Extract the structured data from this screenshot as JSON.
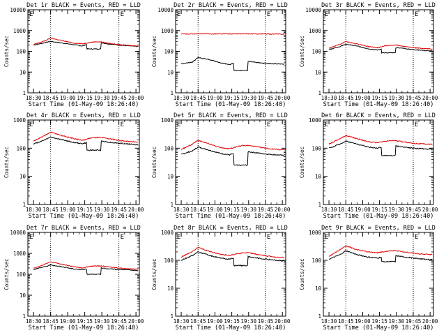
{
  "colors": {
    "events": "#000000",
    "lld": "#e00000",
    "background": "#ffffff"
  },
  "chart_data": [
    {
      "type": "line",
      "title": "Det 1r BLACK = Events, RED = LLD",
      "xlabel": "Start Time (01-May-09 18:26:40)",
      "ylabel": "Counts/sec",
      "ylim": [
        1,
        10000
      ],
      "yscale": "log",
      "yticks": [
        "1",
        "10",
        "100",
        "1000",
        "10000"
      ],
      "x_ticks": [
        "18:30",
        "18:45",
        "19:00",
        "19:15",
        "19:30",
        "19:45",
        "20:00"
      ],
      "x_minutes": [
        0,
        15,
        30,
        45,
        60,
        75,
        90
      ],
      "vlines_minutes": [
        15,
        75
      ],
      "flag": "E",
      "x": [
        0,
        10,
        15,
        25,
        35,
        43,
        45,
        50,
        55,
        60,
        65,
        75,
        85,
        92
      ],
      "series": [
        {
          "values": [
            200,
            260,
            300,
            250,
            210,
            180,
            200,
            250,
            270,
            260,
            230,
            200,
            180,
            170
          ]
        },
        {
          "values": [
            210,
            320,
            430,
            330,
            250,
            230,
            240,
            270,
            290,
            280,
            250,
            210,
            190,
            180
          ]
        }
      ],
      "dip": {
        "series": 0,
        "start": 47,
        "end": 59,
        "value": 130
      }
    },
    {
      "type": "line",
      "title": "Det 2r BLACK = Events, RED = LLD",
      "xlabel": "Start Time (01-May-09 18:26:40)",
      "ylabel": "Counts/sec",
      "ylim": [
        1,
        10000
      ],
      "yscale": "log",
      "yticks": [
        "1",
        "10",
        "100",
        "1000",
        "10000"
      ],
      "x_ticks": [
        "18:30",
        "18:45",
        "19:00",
        "19:15",
        "19:30",
        "19:45",
        "20:00"
      ],
      "x_minutes": [
        0,
        15,
        30,
        45,
        60,
        75,
        90
      ],
      "vlines_minutes": [
        15,
        75
      ],
      "flag": "E",
      "x": [
        0,
        10,
        15,
        25,
        35,
        43,
        45,
        50,
        55,
        60,
        65,
        75,
        85,
        92
      ],
      "series": [
        {
          "values": [
            25,
            30,
            50,
            40,
            28,
            23,
            25,
            28,
            32,
            33,
            30,
            26,
            25,
            24
          ]
        },
        {
          "values": [
            680,
            690,
            700,
            690,
            680,
            690,
            685,
            690,
            690,
            690,
            685,
            680,
            675,
            670
          ]
        }
      ],
      "dip": {
        "series": 0,
        "start": 47,
        "end": 59,
        "value": 12
      }
    },
    {
      "type": "line",
      "title": "Det 3r BLACK = Events, RED = LLD",
      "xlabel": "Start Time (01-May-09 18:26:40)",
      "ylabel": "Counts/sec",
      "ylim": [
        1,
        10000
      ],
      "yscale": "log",
      "yticks": [
        "1",
        "10",
        "100",
        "1000",
        "10000"
      ],
      "x_ticks": [
        "18:30",
        "18:45",
        "19:00",
        "19:15",
        "19:30",
        "19:45",
        "20:00"
      ],
      "x_minutes": [
        0,
        15,
        30,
        45,
        60,
        75,
        90
      ],
      "vlines_minutes": [
        15,
        75
      ],
      "flag": "E",
      "x": [
        0,
        10,
        15,
        25,
        35,
        43,
        45,
        50,
        55,
        60,
        65,
        75,
        85,
        92
      ],
      "series": [
        {
          "values": [
            120,
            170,
            220,
            180,
            130,
            115,
            120,
            140,
            150,
            150,
            140,
            120,
            110,
            105
          ]
        },
        {
          "values": [
            140,
            220,
            290,
            230,
            170,
            150,
            155,
            185,
            195,
            200,
            180,
            150,
            135,
            130
          ]
        }
      ],
      "dip": {
        "series": 0,
        "start": 47,
        "end": 59,
        "value": 85
      }
    },
    {
      "type": "line",
      "title": "Det 4r BLACK = Events, RED = LLD",
      "xlabel": "Start Time (01-May-09 18:26:40)",
      "ylabel": "Counts/sec",
      "ylim": [
        1,
        1000
      ],
      "yscale": "log",
      "yticks": [
        "1",
        "10",
        "100",
        "1000"
      ],
      "x_ticks": [
        "18:30",
        "18:45",
        "19:00",
        "19:15",
        "19:30",
        "19:45",
        "20:00"
      ],
      "x_minutes": [
        0,
        15,
        30,
        45,
        60,
        75,
        90
      ],
      "vlines_minutes": [
        15,
        75
      ],
      "flag": "E",
      "x": [
        0,
        10,
        15,
        25,
        35,
        43,
        45,
        50,
        55,
        60,
        65,
        75,
        85,
        92
      ],
      "series": [
        {
          "values": [
            140,
            200,
            250,
            200,
            160,
            145,
            150,
            170,
            180,
            180,
            165,
            150,
            140,
            130
          ]
        },
        {
          "values": [
            180,
            280,
            370,
            280,
            220,
            190,
            200,
            230,
            240,
            240,
            220,
            190,
            170,
            165
          ]
        }
      ],
      "dip": {
        "series": 0,
        "start": 47,
        "end": 59,
        "value": 85
      }
    },
    {
      "type": "line",
      "title": "Det 5r BLACK = Events, RED = LLD",
      "xlabel": "Start Time (01-May-09 18:26:40)",
      "ylabel": "Counts/sec",
      "ylim": [
        1,
        1000
      ],
      "yscale": "log",
      "yticks": [
        "1",
        "10",
        "100",
        "1000"
      ],
      "x_ticks": [
        "18:30",
        "18:45",
        "19:00",
        "19:15",
        "19:30",
        "19:45",
        "20:00"
      ],
      "x_minutes": [
        0,
        15,
        30,
        45,
        60,
        75,
        90
      ],
      "vlines_minutes": [
        15,
        75
      ],
      "flag": "E",
      "x": [
        0,
        10,
        15,
        25,
        35,
        43,
        45,
        50,
        55,
        60,
        65,
        75,
        85,
        92
      ],
      "series": [
        {
          "values": [
            60,
            80,
            110,
            85,
            65,
            58,
            62,
            70,
            75,
            75,
            70,
            62,
            58,
            55
          ]
        },
        {
          "values": [
            90,
            140,
            190,
            140,
            105,
            95,
            100,
            115,
            125,
            125,
            115,
            100,
            90,
            88
          ]
        }
      ],
      "dip": {
        "series": 0,
        "start": 47,
        "end": 59,
        "value": 25
      }
    },
    {
      "type": "line",
      "title": "Det 6r BLACK = Events, RED = LLD",
      "xlabel": "Start Time (01-May-09 18:26:40)",
      "ylabel": "Counts/sec",
      "ylim": [
        1,
        1000
      ],
      "yscale": "log",
      "yticks": [
        "1",
        "10",
        "100",
        "1000"
      ],
      "x_ticks": [
        "18:30",
        "18:45",
        "19:00",
        "19:15",
        "19:30",
        "19:45",
        "20:00"
      ],
      "x_minutes": [
        0,
        15,
        30,
        45,
        60,
        75,
        90
      ],
      "vlines_minutes": [
        15,
        75
      ],
      "flag": "E",
      "x": [
        0,
        10,
        15,
        25,
        35,
        43,
        45,
        50,
        55,
        60,
        65,
        75,
        85,
        92
      ],
      "series": [
        {
          "values": [
            100,
            140,
            180,
            140,
            110,
            100,
            105,
            115,
            120,
            120,
            112,
            100,
            95,
            92
          ]
        },
        {
          "values": [
            140,
            220,
            280,
            220,
            170,
            155,
            160,
            175,
            185,
            185,
            170,
            150,
            140,
            138
          ]
        }
      ],
      "dip": {
        "series": 0,
        "start": 47,
        "end": 59,
        "value": 55
      }
    },
    {
      "type": "line",
      "title": "Det 7r BLACK = Events, RED = LLD",
      "xlabel": "Start Time (01-May-09 18:26:40)",
      "ylabel": "Counts/sec",
      "ylim": [
        1,
        10000
      ],
      "yscale": "log",
      "yticks": [
        "1",
        "10",
        "100",
        "1000",
        "10000"
      ],
      "x_ticks": [
        "18:30",
        "18:45",
        "19:00",
        "19:15",
        "19:30",
        "19:45",
        "20:00"
      ],
      "x_minutes": [
        0,
        15,
        30,
        45,
        60,
        75,
        90
      ],
      "vlines_minutes": [
        15,
        75
      ],
      "flag": "E",
      "x": [
        0,
        10,
        15,
        25,
        35,
        43,
        45,
        50,
        55,
        60,
        65,
        75,
        85,
        92
      ],
      "series": [
        {
          "values": [
            170,
            230,
            280,
            230,
            180,
            165,
            170,
            190,
            200,
            200,
            185,
            170,
            160,
            150
          ]
        },
        {
          "values": [
            190,
            300,
            400,
            300,
            230,
            200,
            210,
            240,
            250,
            250,
            230,
            200,
            180,
            175
          ]
        }
      ],
      "dip": {
        "series": 0,
        "start": 47,
        "end": 59,
        "value": 100
      }
    },
    {
      "type": "line",
      "title": "Det 8r BLACK = Events, RED = LLD",
      "xlabel": "Start Time (01-May-09 18:26:40)",
      "ylabel": "Counts/sec",
      "ylim": [
        1,
        1000
      ],
      "yscale": "log",
      "yticks": [
        "1",
        "10",
        "100",
        "1000"
      ],
      "x_ticks": [
        "18:30",
        "18:45",
        "19:00",
        "19:15",
        "19:30",
        "19:45",
        "20:00"
      ],
      "x_minutes": [
        0,
        15,
        30,
        45,
        60,
        75,
        90
      ],
      "vlines_minutes": [
        15,
        75
      ],
      "flag": "E",
      "x": [
        0,
        10,
        15,
        25,
        35,
        43,
        45,
        50,
        55,
        60,
        65,
        75,
        85,
        92
      ],
      "series": [
        {
          "values": [
            100,
            150,
            200,
            150,
            120,
            110,
            115,
            125,
            135,
            135,
            125,
            110,
            100,
            95
          ]
        },
        {
          "values": [
            130,
            210,
            290,
            210,
            165,
            150,
            155,
            175,
            185,
            185,
            170,
            145,
            130,
            125
          ]
        }
      ],
      "dip": {
        "series": 0,
        "start": 47,
        "end": 59,
        "value": 65
      }
    },
    {
      "type": "line",
      "title": "Det 9r BLACK = Events, RED = LLD",
      "xlabel": "Start Time (01-May-09 18:26:40)",
      "ylabel": "Counts/sec",
      "ylim": [
        1,
        1000
      ],
      "yscale": "log",
      "yticks": [
        "1",
        "10",
        "100",
        "1000"
      ],
      "x_ticks": [
        "18:30",
        "18:45",
        "19:00",
        "19:15",
        "19:30",
        "19:45",
        "20:00"
      ],
      "x_minutes": [
        0,
        15,
        30,
        45,
        60,
        75,
        90
      ],
      "vlines_minutes": [
        15,
        75
      ],
      "flag": "E",
      "x": [
        0,
        10,
        15,
        25,
        35,
        43,
        45,
        50,
        55,
        60,
        65,
        75,
        85,
        92
      ],
      "series": [
        {
          "values": [
            110,
            160,
            220,
            160,
            130,
            120,
            125,
            135,
            145,
            145,
            135,
            120,
            110,
            105
          ]
        },
        {
          "values": [
            140,
            240,
            330,
            240,
            200,
            185,
            190,
            210,
            220,
            220,
            205,
            180,
            165,
            160
          ]
        }
      ],
      "dip": {
        "series": 0,
        "start": 47,
        "end": 59,
        "value": 90
      }
    }
  ]
}
